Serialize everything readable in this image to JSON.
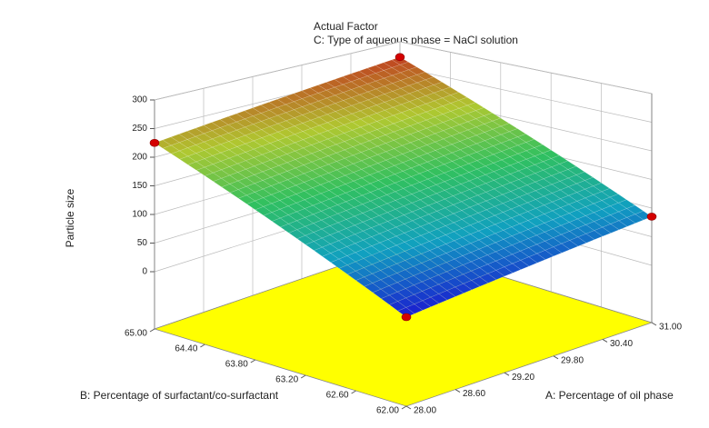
{
  "chart_data": {
    "type": "surface",
    "annotation_title": "Actual Factor",
    "annotation": "C: Type of aqueous phase = NaCl solution",
    "x_label": "A: Percentage of oil phase",
    "y_label": "B: Percentage of surfactant/co-surfactant",
    "z_label": "Particle size",
    "x": [
      28,
      28.6,
      29.2,
      29.8,
      30.4,
      31
    ],
    "y": [
      62,
      62.6,
      63.2,
      63.8,
      64.4,
      65
    ],
    "z": [
      [
        40,
        49,
        58,
        67,
        76,
        85
      ],
      [
        77,
        86,
        95,
        104,
        113,
        122
      ],
      [
        114,
        123,
        132,
        141,
        150,
        159
      ],
      [
        151,
        160,
        169,
        178,
        187,
        196
      ],
      [
        188,
        197,
        206,
        215,
        224,
        233
      ],
      [
        225,
        234,
        243,
        252,
        261,
        270
      ]
    ],
    "xlim": [
      28,
      31
    ],
    "ylim": [
      62,
      65
    ],
    "zlim": [
      -100,
      300
    ],
    "xticks": [
      {
        "value": 28,
        "label": "28.00"
      },
      {
        "value": 28.6,
        "label": "28.60"
      },
      {
        "value": 29.2,
        "label": "29.20"
      },
      {
        "value": 29.8,
        "label": "29.80"
      },
      {
        "value": 30.4,
        "label": "30.40"
      },
      {
        "value": 31,
        "label": "31.00"
      }
    ],
    "yticks": [
      {
        "value": 62,
        "label": "62.00"
      },
      {
        "value": 62.6,
        "label": "62.60"
      },
      {
        "value": 63.2,
        "label": "63.20"
      },
      {
        "value": 63.8,
        "label": "63.80"
      },
      {
        "value": 64.4,
        "label": "64.40"
      },
      {
        "value": 65,
        "label": "65.00"
      }
    ],
    "zticks": [
      0,
      50,
      100,
      150,
      200,
      250,
      300
    ],
    "points": {
      "x": [
        28,
        31,
        28,
        31
      ],
      "y": [
        62,
        62,
        65,
        65
      ],
      "z": [
        40,
        85,
        225,
        270
      ],
      "color": "#d40000"
    },
    "floor_color": "#ffff00",
    "colormap": [
      "#1a1ad0",
      "#10a0c0",
      "#30c060",
      "#b0c830",
      "#c04020"
    ]
  }
}
